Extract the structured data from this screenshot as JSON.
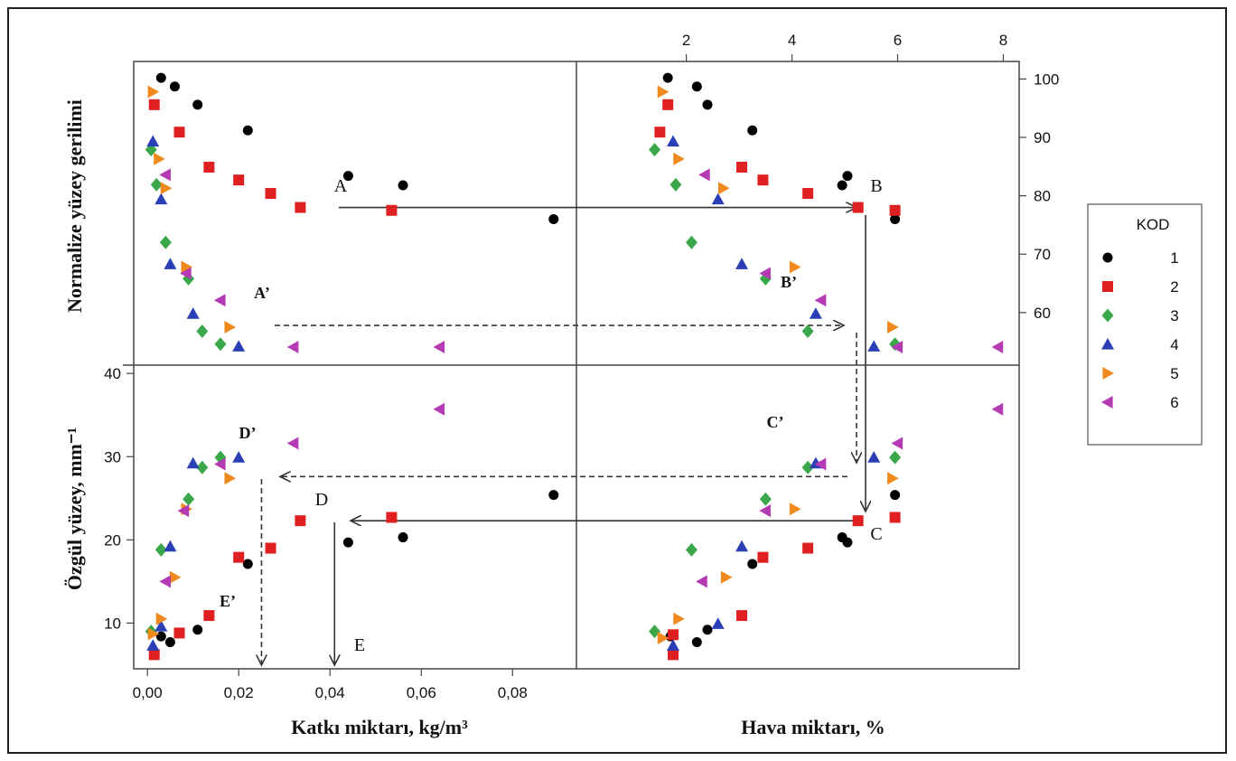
{
  "chart_data": {
    "type": "scatter",
    "axes": {
      "katki_x": {
        "label": "Katkı miktarı, kg/m³",
        "ticks": [
          "0,00",
          "0,02",
          "0,04",
          "0,06",
          "0,08"
        ],
        "tick_values": [
          0,
          0.02,
          0.04,
          0.06,
          0.08
        ],
        "range": [
          -0.003,
          0.094
        ]
      },
      "hava_x": {
        "ticks": [
          "2",
          "4",
          "6",
          "8"
        ],
        "tick_values": [
          2,
          4,
          6,
          8
        ],
        "range": [
          -0.08,
          8.3
        ],
        "label": "Hava miktarı, %"
      },
      "nys_y": {
        "label": "Normalize yüzey gerilimi",
        "ticks": [
          "60",
          "70",
          "80",
          "90",
          "100"
        ],
        "tick_values": [
          60,
          70,
          80,
          90,
          100
        ],
        "range": [
          51,
          103
        ]
      },
      "ozgul_y": {
        "label": "Özgül yüzey, mm⁻¹",
        "ticks": [
          "10",
          "20",
          "30",
          "40"
        ],
        "tick_values": [
          10,
          20,
          30,
          40
        ],
        "range": [
          4.5,
          41
        ]
      }
    },
    "legend": {
      "title": "KOD",
      "position": "right",
      "entries": [
        "1",
        "2",
        "3",
        "4",
        "5",
        "6"
      ]
    },
    "series": [
      {
        "name": "1",
        "color": "#000000",
        "marker": "circle",
        "nys_vs_katki": [
          [
            0.003,
            100.2
          ],
          [
            0.006,
            98.7
          ],
          [
            0.011,
            95.6
          ],
          [
            0.022,
            91.2
          ],
          [
            0.044,
            83.4
          ],
          [
            0.056,
            81.8
          ],
          [
            0.089,
            76
          ]
        ],
        "nys_vs_hava": [
          [
            1.65,
            100.2
          ],
          [
            2.2,
            98.7
          ],
          [
            2.4,
            95.6
          ],
          [
            3.25,
            91.2
          ],
          [
            5.05,
            83.4
          ],
          [
            4.95,
            81.8
          ],
          [
            5.95,
            76
          ]
        ],
        "oz_vs_katki": [
          [
            0.003,
            8.4
          ],
          [
            0.005,
            7.7
          ],
          [
            0.011,
            9.2
          ],
          [
            0.022,
            17.1
          ],
          [
            0.044,
            19.7
          ],
          [
            0.056,
            20.3
          ],
          [
            0.089,
            25.4
          ]
        ],
        "oz_vs_hava": [
          [
            1.7,
            8.4
          ],
          [
            2.2,
            7.7
          ],
          [
            2.4,
            9.2
          ],
          [
            3.25,
            17.1
          ],
          [
            4.95,
            20.3
          ],
          [
            5.05,
            19.7
          ],
          [
            5.95,
            25.4
          ]
        ]
      },
      {
        "name": "2",
        "color": "#e02020",
        "marker": "square",
        "nys_vs_katki": [
          [
            0.0015,
            95.6
          ],
          [
            0.007,
            90.9
          ],
          [
            0.0135,
            84.9
          ],
          [
            0.02,
            82.7
          ],
          [
            0.027,
            80.4
          ],
          [
            0.0335,
            78
          ],
          [
            0.0535,
            77.5
          ]
        ],
        "nys_vs_hava": [
          [
            1.5,
            90.9
          ],
          [
            1.65,
            95.6
          ],
          [
            3.05,
            84.9
          ],
          [
            3.45,
            82.7
          ],
          [
            4.3,
            80.4
          ],
          [
            5.25,
            78
          ],
          [
            5.95,
            77.5
          ]
        ],
        "oz_vs_katki": [
          [
            0.0015,
            6.2
          ],
          [
            0.007,
            8.8
          ],
          [
            0.0135,
            10.9
          ],
          [
            0.02,
            17.9
          ],
          [
            0.027,
            19
          ],
          [
            0.0335,
            22.3
          ],
          [
            0.0535,
            22.7
          ]
        ],
        "oz_vs_hava": [
          [
            1.75,
            6.2
          ],
          [
            1.75,
            8.6
          ],
          [
            3.05,
            10.9
          ],
          [
            3.45,
            17.9
          ],
          [
            4.3,
            19
          ],
          [
            5.25,
            22.3
          ],
          [
            5.95,
            22.7
          ]
        ]
      },
      {
        "name": "3",
        "color": "#3aa84a",
        "marker": "diamond",
        "nys_vs_katki": [
          [
            0.0008,
            87.9
          ],
          [
            0.002,
            81.9
          ],
          [
            0.004,
            72
          ],
          [
            0.009,
            65.8
          ],
          [
            0.012,
            56.8
          ],
          [
            0.016,
            54.6
          ]
        ],
        "nys_vs_hava": [
          [
            1.4,
            87.9
          ],
          [
            1.8,
            81.9
          ],
          [
            2.1,
            72
          ],
          [
            3.5,
            65.8
          ],
          [
            4.3,
            56.8
          ],
          [
            5.95,
            54.6
          ]
        ],
        "oz_vs_katki": [
          [
            0.0008,
            9
          ],
          [
            0.003,
            18.8
          ],
          [
            0.009,
            24.9
          ],
          [
            0.012,
            28.7
          ],
          [
            0.016,
            29.9
          ]
        ],
        "oz_vs_hava": [
          [
            1.4,
            9
          ],
          [
            2.1,
            18.8
          ],
          [
            3.5,
            24.9
          ],
          [
            4.3,
            28.7
          ],
          [
            5.95,
            29.9
          ]
        ]
      },
      {
        "name": "4",
        "color": "#2a3fb5",
        "marker": "triangle-up",
        "nys_vs_katki": [
          [
            0.0012,
            89.3
          ],
          [
            0.003,
            79.4
          ],
          [
            0.005,
            68.3
          ],
          [
            0.01,
            59.8
          ],
          [
            0.02,
            54.2
          ]
        ],
        "nys_vs_hava": [
          [
            1.75,
            89.3
          ],
          [
            2.6,
            79.4
          ],
          [
            3.05,
            68.3
          ],
          [
            4.45,
            59.8
          ],
          [
            5.55,
            54.2
          ]
        ],
        "oz_vs_katki": [
          [
            0.0012,
            7.3
          ],
          [
            0.003,
            9.6
          ],
          [
            0.005,
            19.2
          ],
          [
            0.01,
            29.2
          ],
          [
            0.02,
            29.9
          ]
        ],
        "oz_vs_hava": [
          [
            1.75,
            7.3
          ],
          [
            2.6,
            9.9
          ],
          [
            3.05,
            19.2
          ],
          [
            4.45,
            29.2
          ],
          [
            5.55,
            29.9
          ]
        ]
      },
      {
        "name": "5",
        "color": "#f08a1e",
        "marker": "triangle-right",
        "nys_vs_katki": [
          [
            0.0012,
            97.8
          ],
          [
            0.0025,
            86.3
          ],
          [
            0.004,
            81.3
          ],
          [
            0.0085,
            67.8
          ],
          [
            0.018,
            57.5
          ]
        ],
        "nys_vs_hava": [
          [
            1.55,
            97.8
          ],
          [
            1.85,
            86.3
          ],
          [
            2.7,
            81.3
          ],
          [
            4.05,
            67.8
          ],
          [
            5.9,
            57.5
          ]
        ],
        "oz_vs_katki": [
          [
            0.0012,
            8.7
          ],
          [
            0.003,
            10.5
          ],
          [
            0.006,
            15.5
          ],
          [
            0.0085,
            23.7
          ],
          [
            0.018,
            27.4
          ]
        ],
        "oz_vs_hava": [
          [
            1.55,
            8.2
          ],
          [
            1.85,
            10.5
          ],
          [
            2.75,
            15.5
          ],
          [
            4.05,
            23.7
          ],
          [
            5.9,
            27.4
          ]
        ]
      },
      {
        "name": "6",
        "color": "#b53ab5",
        "marker": "triangle-left",
        "nys_vs_katki": [
          [
            0.004,
            83.6
          ],
          [
            0.0085,
            66.7
          ],
          [
            0.016,
            62.1
          ],
          [
            0.032,
            54.1
          ],
          [
            0.064,
            54.1
          ]
        ],
        "nys_vs_hava": [
          [
            2.35,
            83.6
          ],
          [
            3.5,
            66.7
          ],
          [
            4.55,
            62.1
          ],
          [
            6.0,
            54.1
          ],
          [
            7.9,
            54.1
          ]
        ],
        "oz_vs_katki": [
          [
            0.004,
            15
          ],
          [
            0.008,
            23.5
          ],
          [
            0.016,
            29.1
          ],
          [
            0.032,
            31.6
          ],
          [
            0.064,
            35.7
          ]
        ],
        "oz_vs_hava": [
          [
            2.3,
            15
          ],
          [
            3.5,
            23.5
          ],
          [
            4.55,
            29.1
          ],
          [
            6.0,
            31.6
          ],
          [
            7.9,
            35.7
          ]
        ]
      }
    ],
    "annotations": [
      {
        "label": "A",
        "style": "normal"
      },
      {
        "label": "B",
        "style": "normal"
      },
      {
        "label": "C",
        "style": "normal"
      },
      {
        "label": "D",
        "style": "normal"
      },
      {
        "label": "E",
        "style": "normal"
      },
      {
        "label": "A’",
        "style": "bold"
      },
      {
        "label": "B’",
        "style": "bold"
      },
      {
        "label": "C’",
        "style": "bold"
      },
      {
        "label": "D’",
        "style": "bold"
      },
      {
        "label": "E’",
        "style": "bold"
      }
    ],
    "guides": [
      {
        "from": "A",
        "to": "B",
        "style": "solid",
        "y_nys": 78
      },
      {
        "from": "B",
        "to": "C",
        "style": "solid",
        "hava": 5.75
      },
      {
        "from": "C",
        "to": "D",
        "style": "solid",
        "y_oz": 22.3
      },
      {
        "from": "D",
        "to": "E",
        "style": "solid",
        "katki": 0.041
      },
      {
        "from": "A’",
        "to": "B’",
        "style": "dashed",
        "y_nys": 57.8
      },
      {
        "from": "B’",
        "to": "C’",
        "style": "dashed",
        "hava": 5.65
      },
      {
        "from": "C’",
        "to": "D’",
        "style": "dashed",
        "y_oz": 27.6
      },
      {
        "from": "D’",
        "to": "E’",
        "style": "dashed",
        "katki": 0.025
      }
    ]
  }
}
